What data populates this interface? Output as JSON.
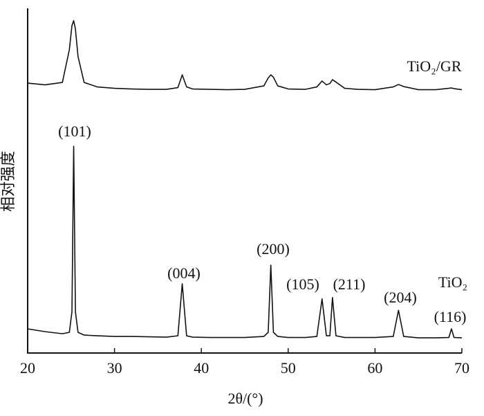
{
  "chart_data": {
    "type": "line",
    "xlabel": "2θ/(°)",
    "ylabel": "相对强度",
    "x": [
      20,
      22,
      24,
      24.8,
      25.1,
      25.3,
      25.5,
      25.8,
      26.5,
      28,
      30,
      32,
      34,
      36,
      37.3,
      37.8,
      38.3,
      39,
      41,
      43,
      45,
      47.2,
      47.7,
      48.0,
      48.3,
      48.8,
      50,
      52,
      53.3,
      53.9,
      54.4,
      54.8,
      55.1,
      55.5,
      56.5,
      58,
      60,
      62.1,
      62.7,
      63.3,
      65,
      67,
      68.5,
      68.8,
      69.1,
      70
    ],
    "series": [
      {
        "name": "TiO₂/GR",
        "color": "#111111",
        "values": [
          78.3,
          77.8,
          78.5,
          88,
          95,
          96.4,
          94,
          86,
          78.5,
          77.2,
          76.8,
          76.6,
          76.5,
          76.5,
          77,
          80.7,
          77.2,
          76.6,
          76.5,
          76.4,
          76.5,
          77.5,
          79.8,
          80.7,
          80,
          77.5,
          76.6,
          76.5,
          77.2,
          78.9,
          77.8,
          78.2,
          79.3,
          78.6,
          76.8,
          76.5,
          76.4,
          77.2,
          77.9,
          77.3,
          76.4,
          76.4,
          76.8,
          76.9,
          76.7,
          76.4
        ]
      },
      {
        "name": "TiO₂",
        "color": "#111111",
        "values": [
          7,
          6.2,
          5.6,
          6,
          12,
          60,
          12,
          6,
          5.2,
          5,
          4.8,
          4.8,
          4.7,
          4.6,
          5,
          20.1,
          5,
          4.6,
          4.5,
          4.5,
          4.5,
          4.8,
          6,
          25.5,
          6,
          4.8,
          4.5,
          4.5,
          4.8,
          15.7,
          5,
          5,
          16.1,
          5,
          4.5,
          4.5,
          4.5,
          4.8,
          12.4,
          4.8,
          4.4,
          4.4,
          4.5,
          7,
          4.5,
          4.4
        ]
      }
    ],
    "annotations": [
      "(101)",
      "(004)",
      "(200)",
      "(105)",
      "(211)",
      "(204)",
      "(116)"
    ],
    "xlim": [
      20,
      70
    ],
    "xticks": [
      20,
      30,
      40,
      50,
      60,
      70
    ],
    "ylim": [
      0,
      100
    ],
    "grid": false
  }
}
